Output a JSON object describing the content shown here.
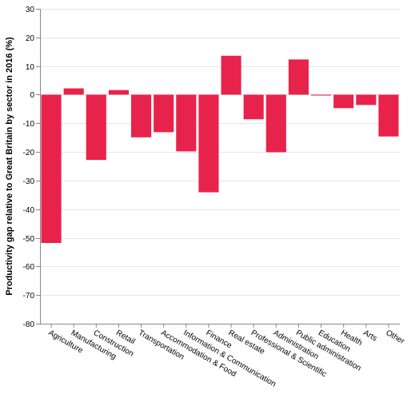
{
  "chart_data": {
    "type": "bar",
    "ylabel": "Productivity gap relative to Great Britain by sector in 2016 (%)",
    "xlabel": "",
    "ylim": [
      -80,
      30
    ],
    "yticks": [
      30,
      20,
      10,
      0,
      -10,
      -20,
      -30,
      -40,
      -50,
      -60,
      -70,
      -80
    ],
    "grid": true,
    "bar_color": "#e8234b",
    "categories": [
      "Agriculture",
      "Manufacturing",
      "Construction",
      "Retail",
      "Transportation",
      "Accommodation & Food",
      "Information & Communication",
      "Finance",
      "Real estate",
      "Professional & Scientific",
      "Administration",
      "Public administration",
      "Education",
      "Health",
      "Arts",
      "Other"
    ],
    "values": [
      -51.8,
      2.2,
      -22.8,
      1.6,
      -14.9,
      -13.1,
      -19.8,
      -34.1,
      13.6,
      -8.6,
      -20.1,
      12.3,
      -0.3,
      -4.7,
      -3.6,
      -14.6
    ]
  }
}
